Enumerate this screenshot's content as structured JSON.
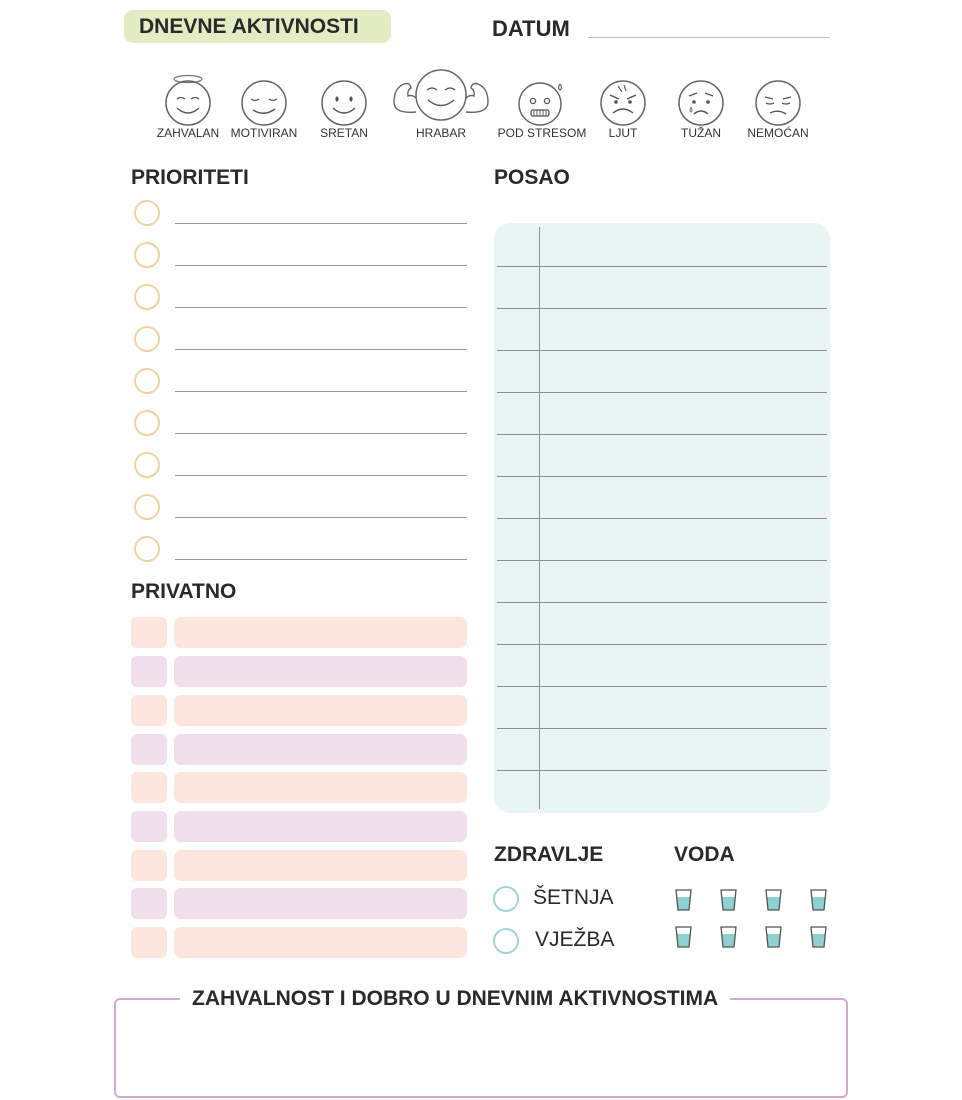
{
  "header": {
    "title": "DNEVNE AKTIVNOSTI",
    "date_label": "DATUM"
  },
  "moods": [
    {
      "label": "ZAHVALAN",
      "icon": "grateful-face-icon"
    },
    {
      "label": "MOTIVIRAN",
      "icon": "motivated-face-icon"
    },
    {
      "label": "SRETAN",
      "icon": "happy-face-icon"
    },
    {
      "label": "HRABAR",
      "icon": "brave-face-icon"
    },
    {
      "label": "POD STRESOM",
      "icon": "stressed-face-icon"
    },
    {
      "label": "LJUT",
      "icon": "angry-face-icon"
    },
    {
      "label": "TUŽAN",
      "icon": "sad-face-icon"
    },
    {
      "label": "NEMOĆAN",
      "icon": "helpless-face-icon"
    }
  ],
  "sections": {
    "priorities": "PRIORITETI",
    "private": "PRIVATNO",
    "work": "POSAO",
    "health": "ZDRAVLJE",
    "water": "VODA",
    "gratitude": "ZAHVALNOST I DOBRO U DNEVNIM AKTIVNOSTIMA"
  },
  "health_items": [
    {
      "label": "ŠETNJA"
    },
    {
      "label": "VJEŽBA"
    }
  ],
  "colors": {
    "title_pill": "#e3ecc2",
    "priority_circle": "#f2d2a0",
    "private_peach": "#fde6de",
    "private_lilac": "#f1dfec",
    "work_box": "#e8f5f2",
    "health_circle": "#9ed6d6",
    "water": "#8fd0d0",
    "gratitude_border": "#d3a9cf"
  }
}
